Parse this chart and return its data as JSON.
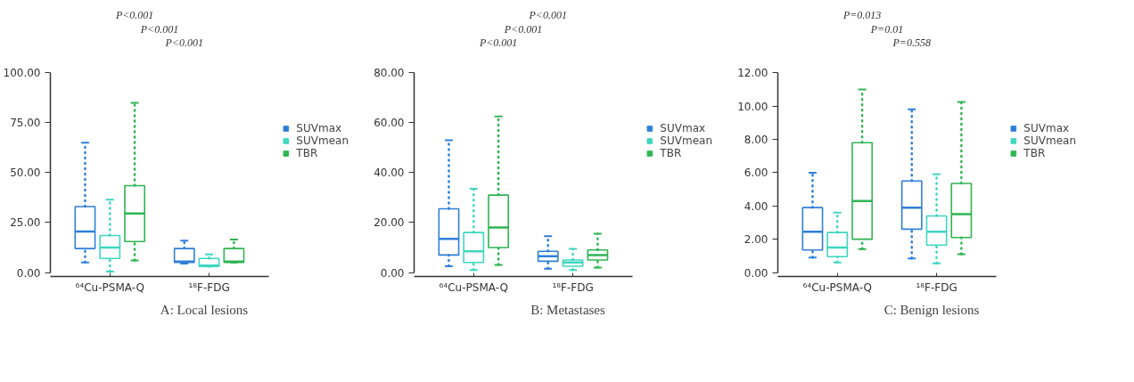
{
  "chart_data": [
    {
      "type": "box",
      "title": "A: Local lesions",
      "categories": [
        "⁶⁴Cu-PSMA-Q",
        "¹⁸F-FDG"
      ],
      "ylim": [
        0,
        100
      ],
      "yticks": [
        {
          "value": 0,
          "label": "0.00"
        },
        {
          "value": 25,
          "label": "25.00"
        },
        {
          "value": 50,
          "label": "50.00"
        },
        {
          "value": 75,
          "label": "75.00"
        },
        {
          "value": 100,
          "label": "100.00"
        }
      ],
      "grid": false,
      "legend": "right",
      "annotations": [
        "P<0.001",
        "P<0.001",
        "P<0.001"
      ],
      "series": [
        {
          "name": "SUVmax",
          "color": "#2f7fd8",
          "boxes": [
            {
              "low": 5,
              "q1": 12,
              "median": 20.5,
              "q3": 33,
              "high": 65
            },
            {
              "low": 4.5,
              "q1": 5,
              "median": 5.5,
              "q3": 12,
              "high": 16
            }
          ]
        },
        {
          "name": "SUVmean",
          "color": "#3fd6c0",
          "boxes": [
            {
              "low": 0.5,
              "q1": 7,
              "median": 12.5,
              "q3": 18.5,
              "high": 36.5
            },
            {
              "low": 3,
              "q1": 3,
              "median": 3.5,
              "q3": 7,
              "high": 9
            }
          ]
        },
        {
          "name": "TBR",
          "color": "#2fb552",
          "boxes": [
            {
              "low": 6,
              "q1": 15.5,
              "median": 29.5,
              "q3": 43.5,
              "high": 85
            },
            {
              "low": 5,
              "q1": 5,
              "median": 5.5,
              "q3": 12,
              "high": 16.5
            }
          ]
        }
      ]
    },
    {
      "type": "box",
      "title": "B: Metastases",
      "categories": [
        "⁶⁴Cu-PSMA-Q",
        "¹⁸F-FDG"
      ],
      "ylim": [
        0,
        80
      ],
      "yticks": [
        {
          "value": 0,
          "label": "0.00"
        },
        {
          "value": 20,
          "label": "20.00"
        },
        {
          "value": 40,
          "label": "40.00"
        },
        {
          "value": 60,
          "label": "60.00"
        },
        {
          "value": 80,
          "label": "80.00"
        }
      ],
      "grid": false,
      "legend": "right",
      "annotations": [
        "P<0.001",
        "P<0.001",
        "P<0.001"
      ],
      "series": [
        {
          "name": "SUVmax",
          "color": "#2f7fd8",
          "boxes": [
            {
              "low": 2.5,
              "q1": 7,
              "median": 13.5,
              "q3": 25.5,
              "high": 53
            },
            {
              "low": 1.5,
              "q1": 4.5,
              "median": 6.5,
              "q3": 8.5,
              "high": 14.5
            }
          ]
        },
        {
          "name": "SUVmean",
          "color": "#3fd6c0",
          "boxes": [
            {
              "low": 1,
              "q1": 4,
              "median": 8.5,
              "q3": 16,
              "high": 33.5
            },
            {
              "low": 1,
              "q1": 2.5,
              "median": 4,
              "q3": 5,
              "high": 9.5
            }
          ]
        },
        {
          "name": "TBR",
          "color": "#2fb552",
          "boxes": [
            {
              "low": 3,
              "q1": 10,
              "median": 18,
              "q3": 31,
              "high": 62.5
            },
            {
              "low": 2,
              "q1": 5,
              "median": 7,
              "q3": 9,
              "high": 15.5
            }
          ]
        }
      ]
    },
    {
      "type": "box",
      "title": "C: Benign lesions",
      "categories": [
        "⁶⁴Cu-PSMA-Q",
        "¹⁸F-FDG"
      ],
      "ylim": [
        0,
        12
      ],
      "yticks": [
        {
          "value": 0,
          "label": "0.00"
        },
        {
          "value": 2,
          "label": "2.00"
        },
        {
          "value": 4,
          "label": "4.00"
        },
        {
          "value": 6,
          "label": "6.00"
        },
        {
          "value": 8,
          "label": "8.00"
        },
        {
          "value": 10,
          "label": "10.00"
        },
        {
          "value": 12,
          "label": "12.00"
        }
      ],
      "grid": false,
      "legend": "right",
      "annotations": [
        "P=0.013",
        "P=0.01",
        "P=0.558"
      ],
      "series": [
        {
          "name": "SUVmax",
          "color": "#2f7fd8",
          "boxes": [
            {
              "low": 0.9,
              "q1": 1.35,
              "median": 2.45,
              "q3": 3.9,
              "high": 6.0
            },
            {
              "low": 0.85,
              "q1": 2.6,
              "median": 3.9,
              "q3": 5.5,
              "high": 9.8
            }
          ]
        },
        {
          "name": "SUVmean",
          "color": "#3fd6c0",
          "boxes": [
            {
              "low": 0.6,
              "q1": 0.95,
              "median": 1.5,
              "q3": 2.4,
              "high": 3.6
            },
            {
              "low": 0.55,
              "q1": 1.65,
              "median": 2.45,
              "q3": 3.4,
              "high": 5.9
            }
          ]
        },
        {
          "name": "TBR",
          "color": "#2fb552",
          "boxes": [
            {
              "low": 1.4,
              "q1": 2.0,
              "median": 4.3,
              "q3": 7.8,
              "high": 11.0
            },
            {
              "low": 1.1,
              "q1": 2.1,
              "median": 3.5,
              "q3": 5.35,
              "high": 10.25
            }
          ]
        }
      ]
    }
  ]
}
